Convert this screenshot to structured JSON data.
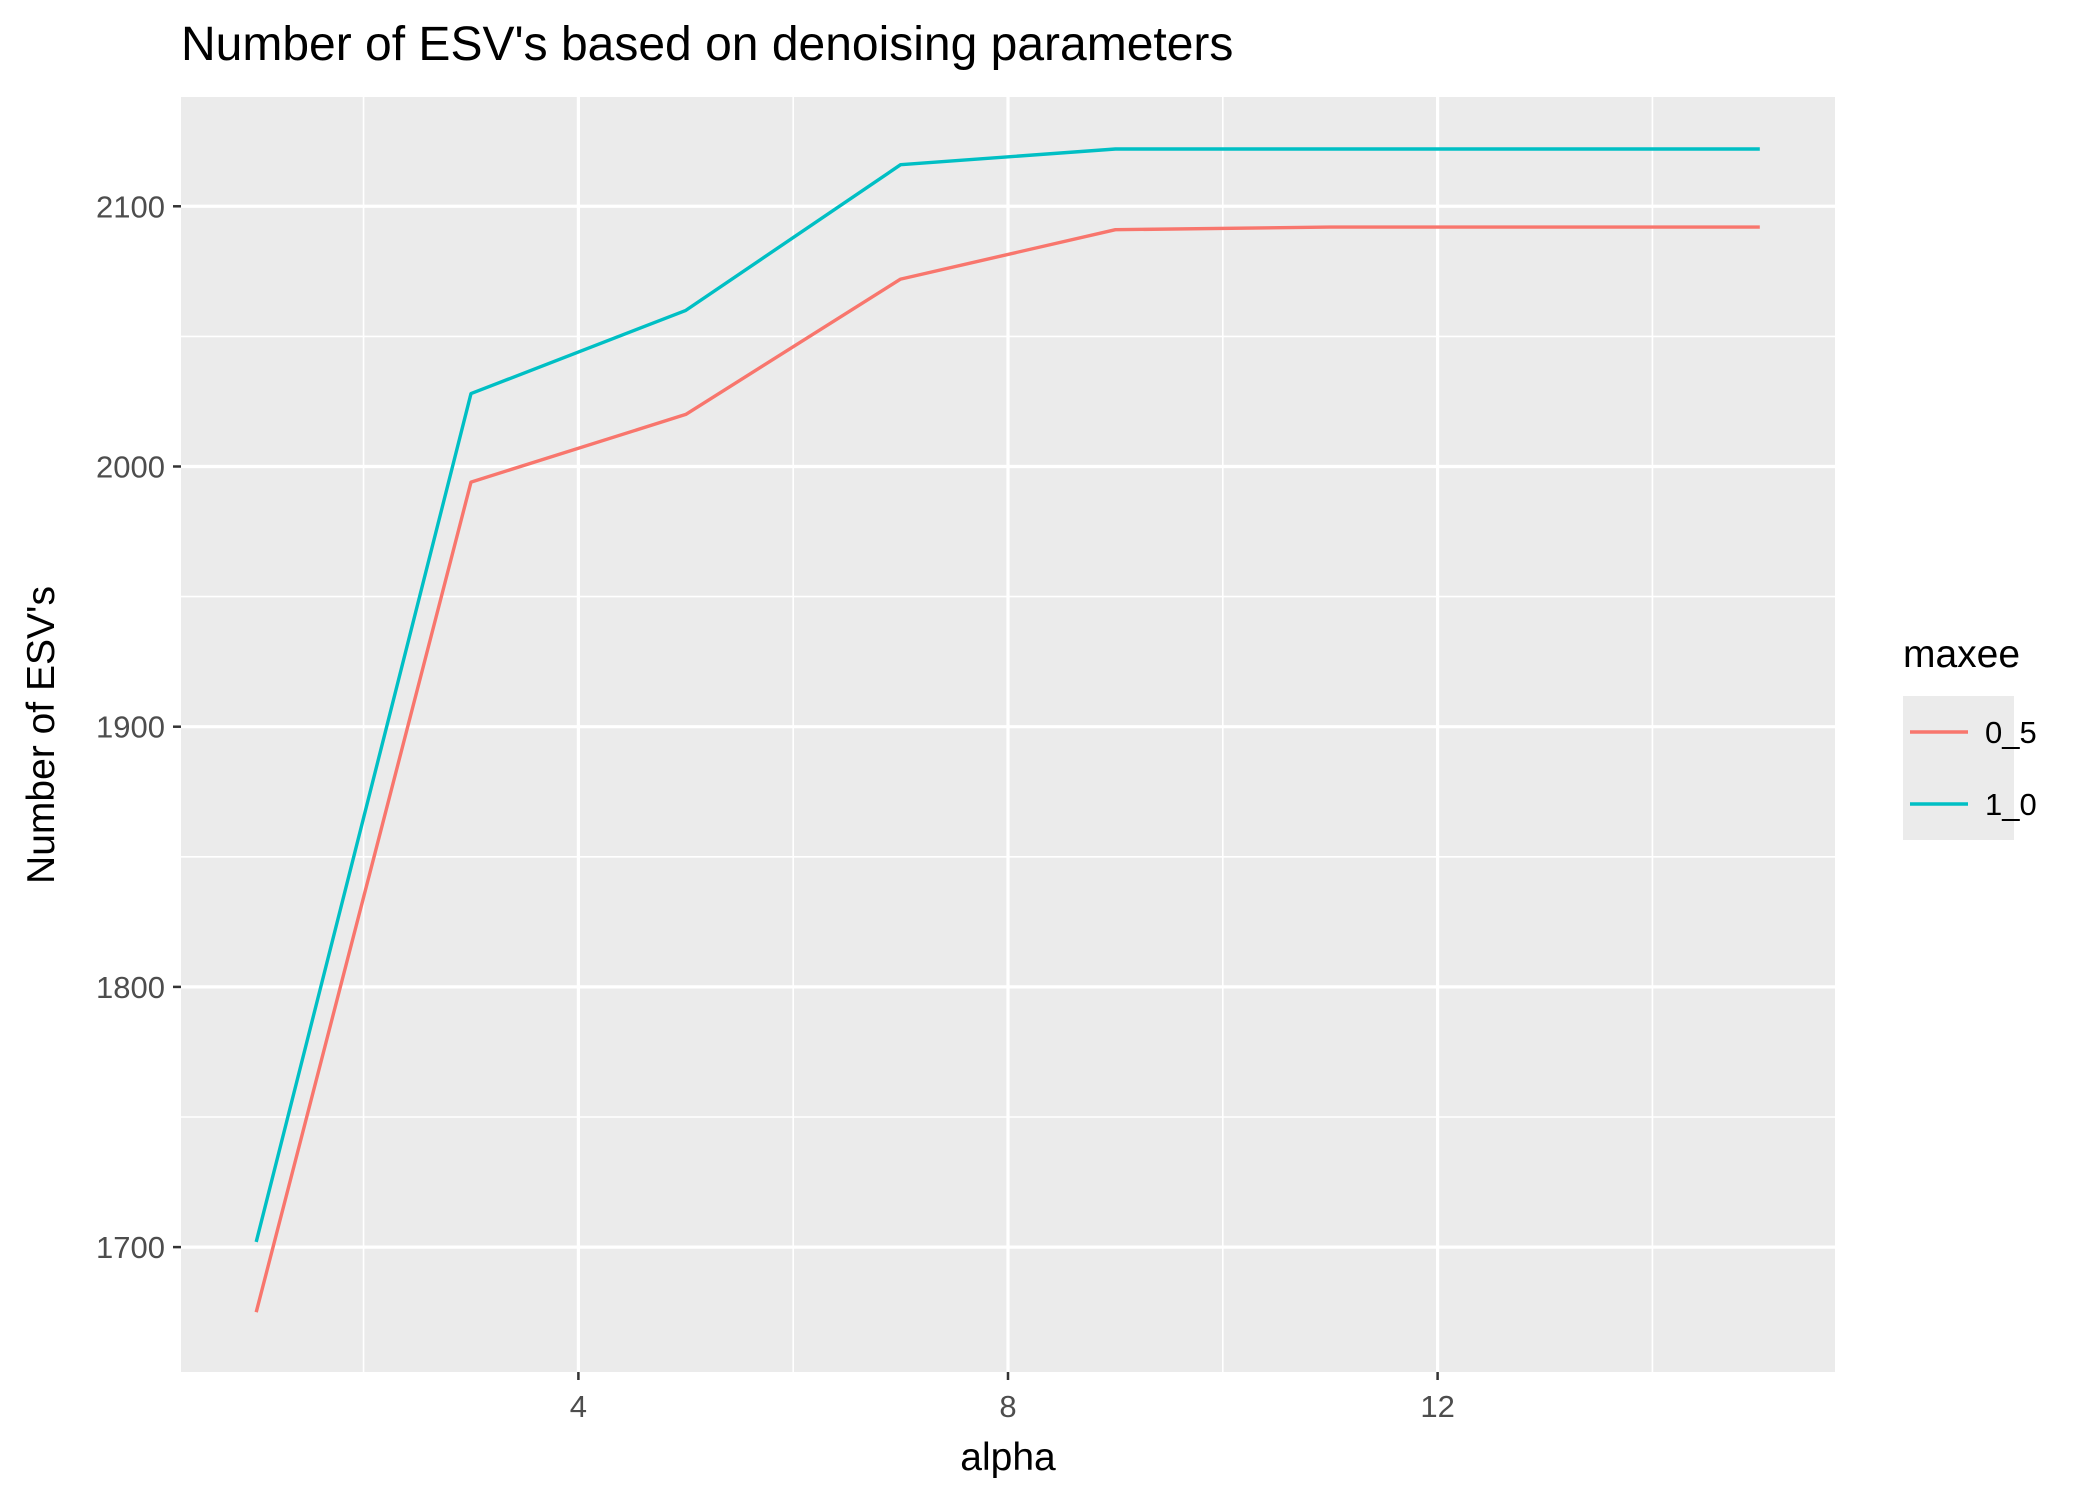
{
  "chart_data": {
    "type": "line",
    "title": "Number of ESV's based on denoising parameters",
    "xlabel": "alpha",
    "ylabel": "Number of ESV's",
    "xlim": [
      0.3,
      15.7
    ],
    "ylim": [
      1652,
      2142
    ],
    "x_ticks": [
      4,
      8,
      12
    ],
    "x_minor_ticks": [
      2,
      6,
      10,
      14
    ],
    "y_ticks": [
      1700,
      1800,
      1900,
      2000,
      2100
    ],
    "y_minor_ticks": [
      1750,
      1850,
      1950,
      2050
    ],
    "grid": true,
    "legend_title": "maxee",
    "legend_position": "right",
    "x": [
      1,
      3,
      5,
      7,
      9,
      11,
      13,
      15
    ],
    "series": [
      {
        "name": "0_5",
        "color": "#F8766D",
        "values": [
          1675,
          1994,
          2020,
          2072,
          2091,
          2092,
          2092,
          2092
        ]
      },
      {
        "name": "1_0",
        "color": "#00BFC4",
        "values": [
          1702,
          2028,
          2060,
          2116,
          2122,
          2122,
          2122,
          2122
        ]
      }
    ],
    "panel_background": "#EBEBEB",
    "grid_color": "#FFFFFF"
  }
}
